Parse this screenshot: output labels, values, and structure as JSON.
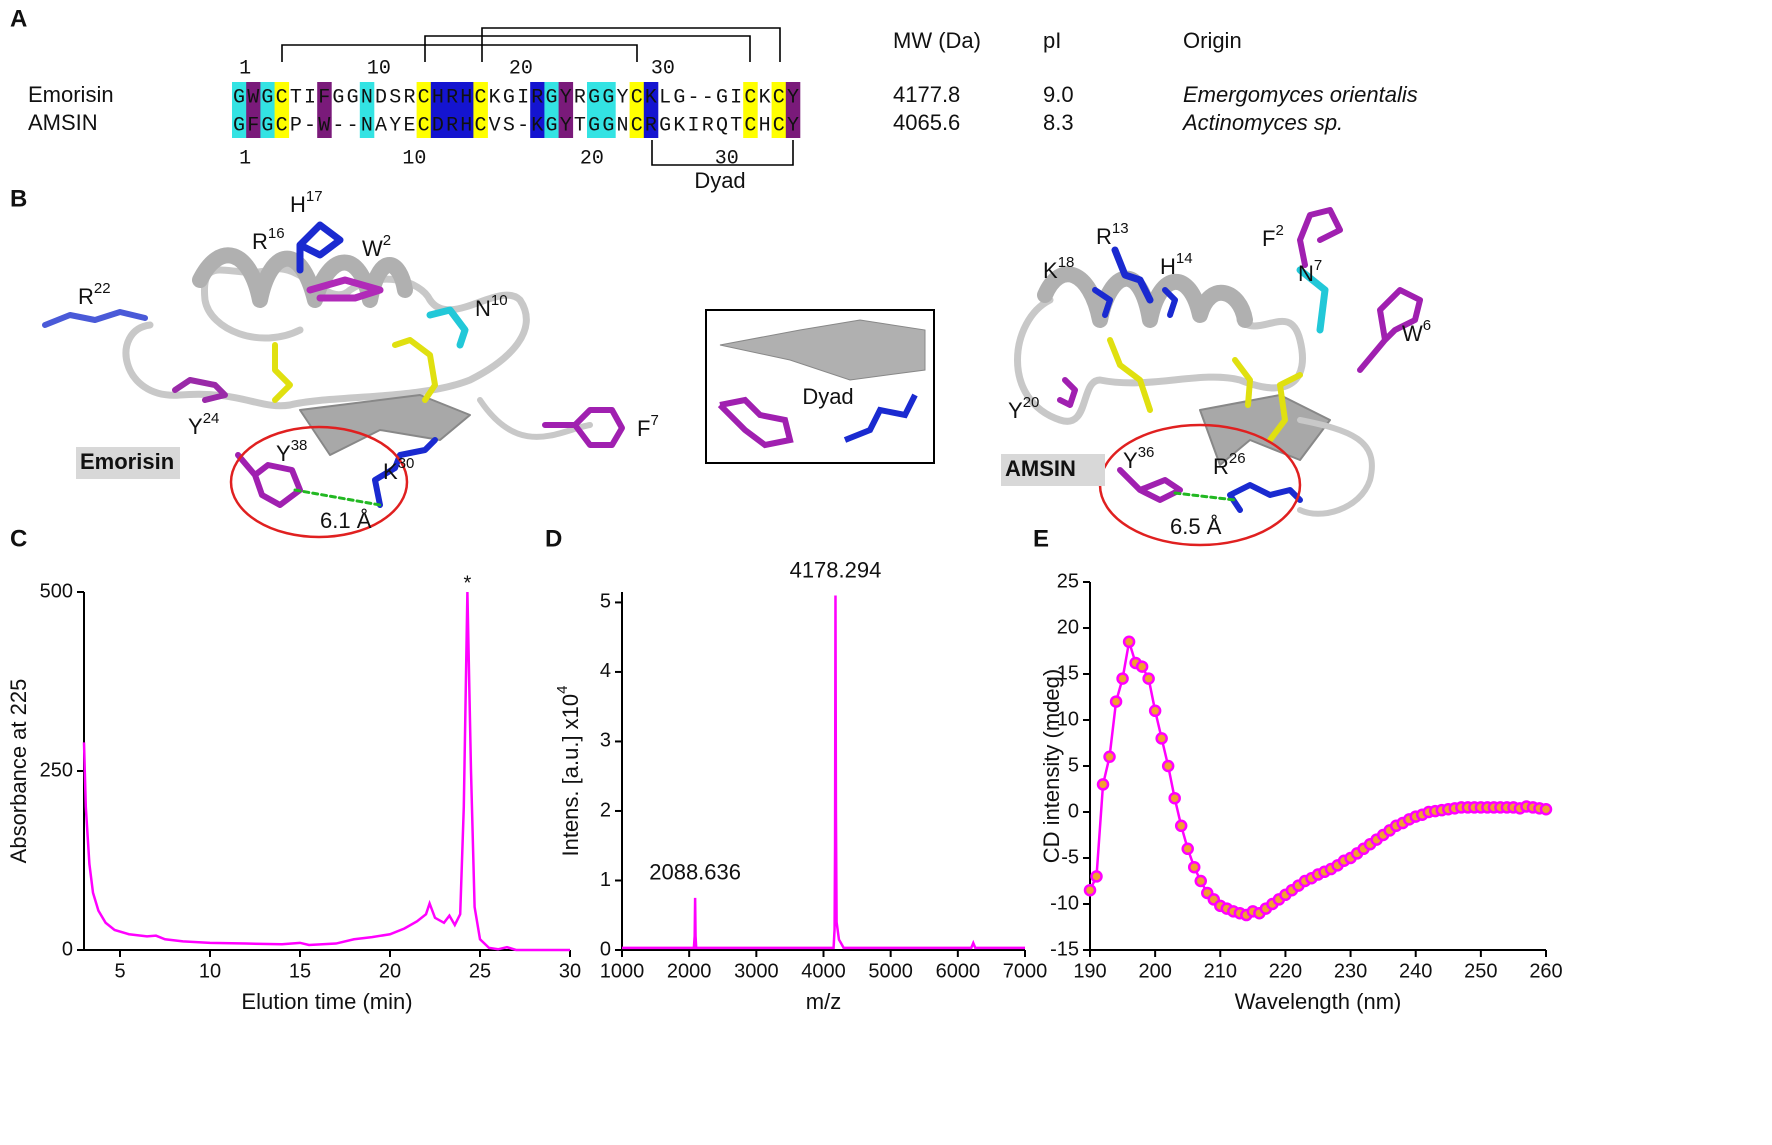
{
  "panel_labels": [
    "A",
    "B",
    "C",
    "D",
    "E"
  ],
  "alignment": {
    "header": {
      "mw": "MW (Da)",
      "pi": "pI",
      "origin": "Origin"
    },
    "rows": [
      {
        "name": "Emorisin",
        "sequence": "GWGCTIFGGNDSRCHRHCKGIRGYRGGYCKLG--GICKCY",
        "mw": "4177.8",
        "pi": "9.0",
        "origin": "Emergomyces orientalis"
      },
      {
        "name": "AMSIN",
        "sequence": "GFGCP-W--NAYECDRHCVS-KGYTGGNCRGKIRQTCHCY",
        "mw": "4065.6",
        "pi": "8.3",
        "origin": "Actinomyces sp."
      }
    ],
    "numbers_top": [
      "1",
      "10",
      "20",
      "30"
    ],
    "numbers_bottom": [
      "1",
      "10",
      "20",
      "30"
    ],
    "dyad": "Dyad"
  },
  "structures": {
    "left": {
      "name": "Emorisin",
      "distance": "6.1 Å",
      "residues": [
        {
          "res": "R",
          "num": "16"
        },
        {
          "res": "H",
          "num": "17"
        },
        {
          "res": "W",
          "num": "2"
        },
        {
          "res": "R",
          "num": "22"
        },
        {
          "res": "N",
          "num": "10"
        },
        {
          "res": "Y",
          "num": "24"
        },
        {
          "res": "F",
          "num": "7"
        },
        {
          "res": "Y",
          "num": "38"
        },
        {
          "res": "K",
          "num": "30"
        }
      ]
    },
    "inset": {
      "label": "Dyad"
    },
    "right": {
      "name": "AMSIN",
      "distance": "6.5 Å",
      "residues": [
        {
          "res": "R",
          "num": "13"
        },
        {
          "res": "K",
          "num": "18"
        },
        {
          "res": "H",
          "num": "14"
        },
        {
          "res": "F",
          "num": "2"
        },
        {
          "res": "N",
          "num": "7"
        },
        {
          "res": "W",
          "num": "6"
        },
        {
          "res": "Y",
          "num": "20"
        },
        {
          "res": "Y",
          "num": "36"
        },
        {
          "res": "R",
          "num": "26"
        }
      ]
    }
  },
  "chart_data": [
    {
      "type": "line",
      "color": "#ff00ff",
      "xlabel": "Elution time (min)",
      "ylabel": "Absorbance at 225",
      "x": [
        3,
        3.1,
        3.3,
        3.5,
        3.8,
        4.2,
        4.7,
        5.5,
        6.5,
        7,
        7.5,
        8.5,
        10,
        12,
        14,
        15,
        15.5,
        17,
        18,
        19,
        20,
        20.8,
        21.5,
        22,
        22.2,
        22.5,
        23,
        23.3,
        23.6,
        23.9,
        24.1,
        24.3,
        24.5,
        24.7,
        25,
        25.5,
        26,
        26.5,
        27,
        28,
        30
      ],
      "values": [
        290,
        200,
        120,
        80,
        55,
        38,
        28,
        22,
        19,
        20,
        15,
        12,
        10,
        9,
        8,
        10,
        7,
        9,
        15,
        18,
        22,
        30,
        40,
        50,
        65,
        45,
        38,
        48,
        35,
        50,
        200,
        500,
        250,
        60,
        15,
        3,
        1,
        4,
        0,
        0,
        0
      ],
      "xlim": [
        3,
        30
      ],
      "xticks": [
        5,
        10,
        15,
        20,
        25,
        30
      ],
      "ylim": [
        0,
        500
      ],
      "yticks": [
        0,
        250,
        500
      ],
      "annotations": [
        {
          "x": 24.3,
          "y": 500,
          "text": "*"
        }
      ]
    },
    {
      "type": "line",
      "color": "#ff00ff",
      "xlabel": "m/z",
      "ylabel": "Intens. [a.u.] x10",
      "ylabel_sup": "4",
      "x": [
        1000,
        2070,
        2082,
        2088.636,
        2095,
        2105,
        4150,
        4165,
        4172,
        4178.294,
        4185,
        4195,
        4230,
        4260,
        4300,
        6200,
        6230,
        6260,
        7000
      ],
      "values": [
        0.03,
        0.03,
        0.2,
        0.75,
        0.2,
        0.03,
        0.03,
        0.3,
        1.5,
        5.1,
        2.0,
        0.4,
        0.15,
        0.1,
        0.03,
        0.03,
        0.1,
        0.03,
        0.03
      ],
      "xlim": [
        1000,
        7000
      ],
      "xticks": [
        1000,
        2000,
        3000,
        4000,
        5000,
        6000,
        7000
      ],
      "ylim": [
        0,
        5.15
      ],
      "yticks": [
        0,
        1,
        2,
        3,
        4,
        5
      ],
      "peak_labels": [
        {
          "x": 2088.636,
          "y": 0.75,
          "label": "2088.636"
        },
        {
          "x": 4178.294,
          "y": 5.1,
          "label": "4178.294"
        }
      ]
    },
    {
      "type": "line",
      "color": "#ff00ff",
      "markers": true,
      "marker_fill": "#f0a030",
      "xlabel": "Wavelength (nm)",
      "ylabel": "CD intensity (mdeg)",
      "x": [
        190,
        191,
        192,
        193,
        194,
        195,
        196,
        197,
        198,
        199,
        200,
        201,
        202,
        203,
        204,
        205,
        206,
        207,
        208,
        209,
        210,
        211,
        212,
        213,
        214,
        215,
        216,
        217,
        218,
        219,
        220,
        221,
        222,
        223,
        224,
        225,
        226,
        227,
        228,
        229,
        230,
        231,
        232,
        233,
        234,
        235,
        236,
        237,
        238,
        239,
        240,
        241,
        242,
        243,
        244,
        245,
        246,
        247,
        248,
        249,
        250,
        251,
        252,
        253,
        254,
        255,
        256,
        257,
        258,
        259,
        260
      ],
      "values": [
        -8.5,
        -7,
        3,
        6,
        12,
        14.5,
        18.5,
        16.2,
        15.8,
        14.5,
        11,
        8,
        5,
        1.5,
        -1.5,
        -4,
        -6,
        -7.5,
        -8.8,
        -9.5,
        -10.2,
        -10.5,
        -10.8,
        -11,
        -11.2,
        -10.8,
        -11,
        -10.5,
        -10,
        -9.5,
        -9,
        -8.5,
        -8,
        -7.5,
        -7.2,
        -6.8,
        -6.5,
        -6.2,
        -5.8,
        -5.3,
        -5,
        -4.5,
        -4,
        -3.5,
        -3,
        -2.5,
        -2,
        -1.5,
        -1.2,
        -0.8,
        -0.5,
        -0.3,
        0,
        0.1,
        0.2,
        0.3,
        0.4,
        0.5,
        0.5,
        0.5,
        0.5,
        0.5,
        0.5,
        0.5,
        0.5,
        0.5,
        0.4,
        0.6,
        0.5,
        0.4,
        0.3
      ],
      "xlim": [
        190,
        260
      ],
      "xticks": [
        190,
        200,
        210,
        220,
        230,
        240,
        250,
        260
      ],
      "ylim": [
        -15,
        25
      ],
      "yticks": [
        -15,
        -10,
        -5,
        0,
        5,
        10,
        15,
        20,
        25
      ]
    }
  ]
}
